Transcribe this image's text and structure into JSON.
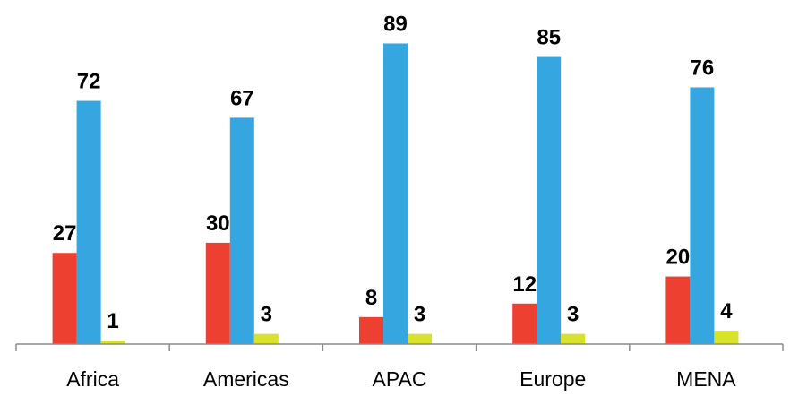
{
  "chart_data": {
    "type": "bar",
    "title": "",
    "xlabel": "",
    "ylabel": "",
    "categories": [
      "Africa",
      "Americas",
      "APAC",
      "Europe",
      "MENA"
    ],
    "series": [
      {
        "values": [
          27,
          30,
          8,
          12,
          20
        ],
        "color": "#ee4030"
      },
      {
        "values": [
          72,
          67,
          89,
          85,
          76
        ],
        "color": "#35a6df"
      },
      {
        "values": [
          1,
          3,
          3,
          3,
          4
        ],
        "color": "#d8e22a"
      }
    ],
    "ylim": [
      0,
      100
    ],
    "grid": false,
    "legend": "none",
    "data_labels": true
  }
}
